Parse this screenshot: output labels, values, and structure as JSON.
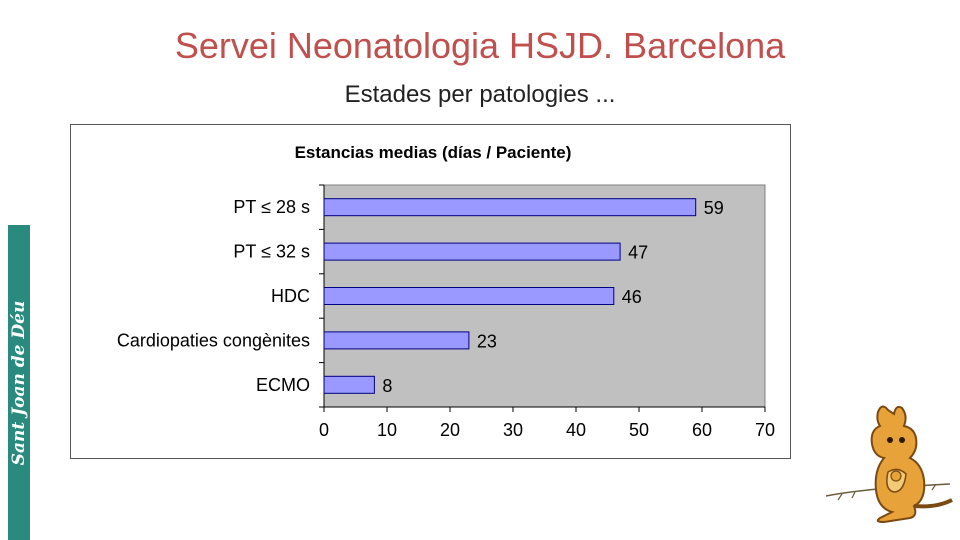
{
  "slide": {
    "title": "Servei Neonatologia HSJD. Barcelona",
    "subtitle": "Estades per patologies ...",
    "logo_text": "Sant Joan de Déu",
    "logo_icon": "kangaroo-mascot-icon"
  },
  "chart_data": {
    "type": "bar",
    "orientation": "horizontal",
    "title": "Estancias medias (días / Paciente)",
    "categories": [
      "PT ≤ 28 s",
      "PT ≤ 32 s",
      "HDC",
      "Cardiopaties congènites",
      "ECMO"
    ],
    "values": [
      59,
      47,
      46,
      23,
      8
    ],
    "data_labels": [
      "59",
      "47",
      "46",
      "23",
      "8"
    ],
    "xlabel": "",
    "ylabel": "",
    "xlim": [
      0,
      70
    ],
    "xticks": [
      0,
      10,
      20,
      30,
      40,
      50,
      60,
      70
    ],
    "xtick_labels": [
      "0",
      "10",
      "20",
      "30",
      "40",
      "50",
      "60",
      "70"
    ],
    "grid": false,
    "legend": "none",
    "colors": {
      "bar_fill": "#9999ff",
      "bar_stroke": "#000080",
      "plot_background": "#c0c0c0",
      "title_color": "#c0504d",
      "band_color": "#2a8a7e"
    }
  }
}
